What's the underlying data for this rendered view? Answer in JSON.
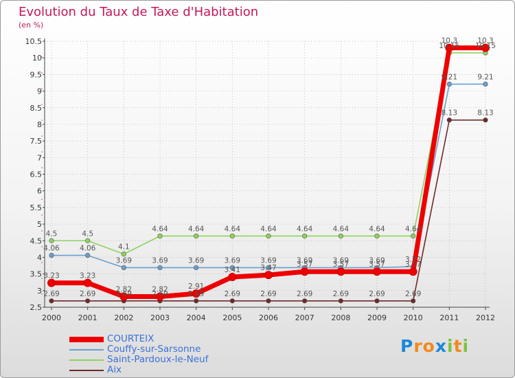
{
  "header": {
    "title": "Evolution du Taux de Taxe d'Habitation",
    "subtitle": "(en %)"
  },
  "chart_data": {
    "type": "line",
    "title": "Evolution du Taux de Taxe d'Habitation",
    "ylabel": "(en %)",
    "xlabel": "",
    "ylim": [
      2.5,
      10.5
    ],
    "yticks": [
      "2.5",
      "3",
      "3.5",
      "4",
      "4.5",
      "5",
      "5.5",
      "6",
      "6.5",
      "7",
      "7.5",
      "8",
      "8.5",
      "9",
      "9.5",
      "10",
      "10.5"
    ],
    "x": [
      "2000",
      "2001",
      "2002",
      "2003",
      "2004",
      "2005",
      "2006",
      "2007",
      "2008",
      "2009",
      "2010",
      "2011",
      "2012"
    ],
    "series": [
      {
        "name": "Aix",
        "color": "#6e2a2a",
        "values": [
          2.69,
          2.69,
          2.69,
          2.69,
          2.69,
          2.69,
          2.69,
          2.69,
          2.69,
          2.69,
          2.69,
          8.13,
          8.13
        ],
        "labels": [
          "2.69",
          "2.69",
          "2.69",
          "2.69",
          "2.69",
          "2.69",
          "2.69",
          "2.69",
          "2.69",
          "2.69",
          "2.69",
          "8.13",
          "8.13"
        ]
      },
      {
        "name": "Saint-Pardoux-le-Neuf",
        "color": "#8ed35c",
        "values": [
          4.5,
          4.5,
          4.1,
          4.64,
          4.64,
          4.64,
          4.64,
          4.64,
          4.64,
          4.64,
          4.64,
          10.15,
          10.15
        ],
        "labels": [
          "4.5",
          "4.5",
          "4.1",
          "4.64",
          "4.64",
          "4.64",
          "4.64",
          "4.64",
          "4.64",
          "4.64",
          "4.64",
          "10.15",
          "10.15"
        ]
      },
      {
        "name": "Couffy-sur-Sarsonne",
        "color": "#6a9fcc",
        "values": [
          4.06,
          4.06,
          3.69,
          3.69,
          3.69,
          3.69,
          3.69,
          3.69,
          3.69,
          3.69,
          3.72,
          9.21,
          9.21
        ],
        "labels": [
          "4.06",
          "4.06",
          "3.69",
          "3.69",
          "3.69",
          "3.69",
          "3.69",
          "3.69",
          "3.69",
          "3.69",
          "3.72",
          "9.21",
          "9.21"
        ]
      },
      {
        "name": "COURTEIX",
        "color": "#ee0000",
        "values": [
          3.23,
          3.23,
          2.82,
          2.82,
          2.91,
          3.41,
          3.47,
          3.57,
          3.57,
          3.57,
          3.57,
          10.3,
          10.3
        ],
        "labels": [
          "3.23",
          "3.23",
          "2.82",
          "2.82",
          "2.91",
          "3.41",
          "3.47",
          "3.57",
          "3.57",
          "3.57",
          "3.57",
          "10.3",
          "10.3"
        ]
      }
    ],
    "legend": [
      "COURTEIX",
      "Couffy-sur-Sarsonne",
      "Saint-Pardoux-le-Neuf",
      "Aix"
    ]
  },
  "legend": {
    "items": [
      {
        "label": "COURTEIX",
        "color": "#ee0000"
      },
      {
        "label": "Couffy-sur-Sarsonne",
        "color": "#6a9fcc"
      },
      {
        "label": "Saint-Pardoux-le-Neuf",
        "color": "#8ed35c"
      },
      {
        "label": "Aix",
        "color": "#6e2a2a"
      }
    ]
  },
  "logo": {
    "text": "Proxiti",
    "letters": [
      "P",
      "r",
      "o",
      "x",
      "i",
      "t",
      "i"
    ],
    "colors": [
      "#1e88d6",
      "#f08a1c",
      "#f08a1c",
      "#1e88d6",
      "#7bc242",
      "#f08a1c",
      "#7bc242"
    ]
  }
}
